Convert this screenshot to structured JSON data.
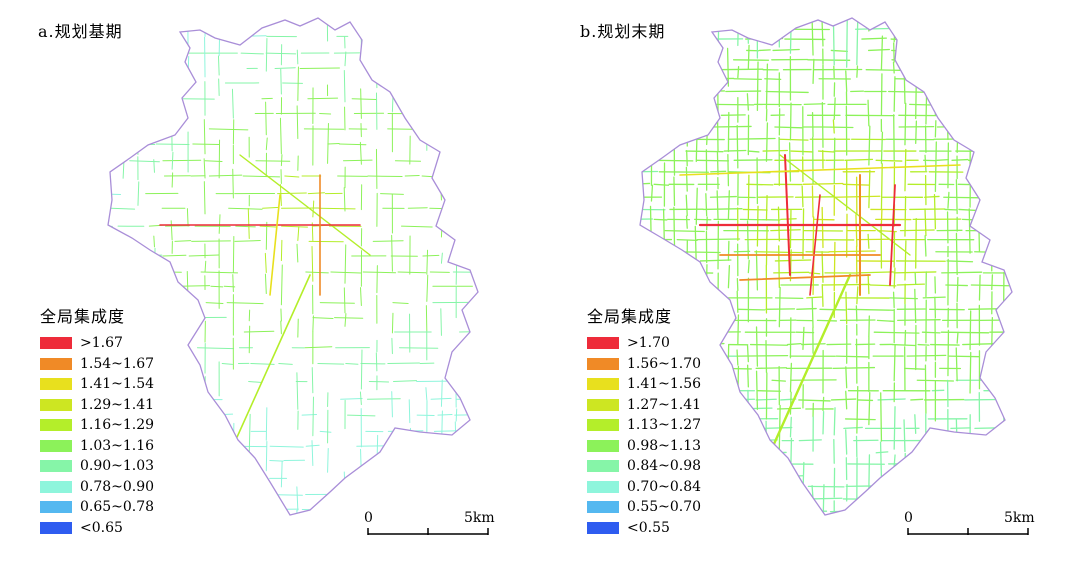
{
  "panels": [
    {
      "title": "a.规划基期",
      "legend_title": "全局集成度",
      "legend": [
        {
          "label": ">1.67",
          "color": "#ee2b3a"
        },
        {
          "label": "1.54~1.67",
          "color": "#f08a26"
        },
        {
          "label": "1.41~1.54",
          "color": "#e8e01e"
        },
        {
          "label": "1.29~1.41",
          "color": "#cde622"
        },
        {
          "label": "1.16~1.29",
          "color": "#b4ee2a"
        },
        {
          "label": "1.03~1.16",
          "color": "#8cf25a"
        },
        {
          "label": "0.90~1.03",
          "color": "#86f5a8"
        },
        {
          "label": "0.78~0.90",
          "color": "#8ef5dc"
        },
        {
          "label": "0.65~0.78",
          "color": "#54b8f0"
        },
        {
          "label": "<0.65",
          "color": "#2e5cf0"
        }
      ],
      "scale": {
        "start": "0",
        "end": "5km"
      }
    },
    {
      "title": "b.规划末期",
      "legend_title": "全局集成度",
      "legend": [
        {
          "label": ">1.70",
          "color": "#ee2b3a"
        },
        {
          "label": "1.56~1.70",
          "color": "#f08a26"
        },
        {
          "label": "1.41~1.56",
          "color": "#e8e01e"
        },
        {
          "label": "1.27~1.41",
          "color": "#cde622"
        },
        {
          "label": "1.13~1.27",
          "color": "#b4ee2a"
        },
        {
          "label": "0.98~1.13",
          "color": "#8cf25a"
        },
        {
          "label": "0.84~0.98",
          "color": "#86f5a8"
        },
        {
          "label": "0.70~0.84",
          "color": "#8ef5dc"
        },
        {
          "label": "0.55~0.70",
          "color": "#54b8f0"
        },
        {
          "label": "<0.55",
          "color": "#2e5cf0"
        }
      ],
      "scale": {
        "start": "0",
        "end": "5km"
      }
    }
  ]
}
